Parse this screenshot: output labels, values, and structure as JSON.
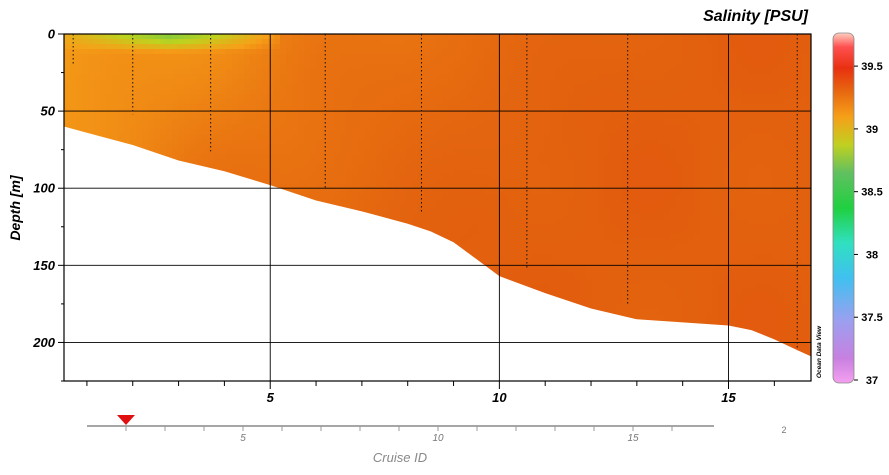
{
  "chart_data": {
    "type": "heatmap",
    "title": "Salinity [PSU]",
    "ylabel": "Depth [m]",
    "xlabel": "",
    "xlim": [
      0.5,
      16.8
    ],
    "ylim": [
      225,
      0
    ],
    "y_inverted": true,
    "x_ticks": [
      5,
      10,
      15
    ],
    "y_ticks": [
      0,
      50,
      100,
      150,
      200
    ],
    "grid": true,
    "stations_x": [
      0.7,
      2.0,
      3.7,
      6.2,
      8.3,
      10.6,
      12.8,
      16.5
    ],
    "station_max_depth": [
      20,
      52,
      76,
      100,
      116,
      152,
      176,
      205
    ],
    "bottom_profile": {
      "x": [
        0.5,
        1,
        2,
        3,
        4,
        5,
        6,
        7,
        8,
        8.5,
        9,
        9.5,
        10,
        11,
        12,
        13,
        14,
        15,
        15.5,
        16,
        16.5,
        16.8
      ],
      "depth": [
        60,
        64,
        72,
        82,
        89,
        98,
        108,
        115,
        123,
        128,
        135,
        146,
        157,
        168,
        178,
        185,
        187,
        189,
        192,
        198,
        205,
        209
      ]
    },
    "salinity_field": {
      "description_free": true,
      "surface_fresh_x": [
        0.5,
        5.2
      ],
      "surface_fresh_min": 38.3,
      "bulk_min": 38.85,
      "bulk_max": 39.12
    },
    "colorbar": {
      "min": 37,
      "max": 39.7,
      "tick_values": [
        37,
        37.5,
        38,
        38.5,
        39,
        39.5
      ],
      "tick_labels": [
        "37",
        "37.5",
        "38",
        "38.5",
        "39",
        "39.5"
      ]
    },
    "watermark": "Ocean Data View",
    "secondary_axis": {
      "label": "Cruise ID",
      "ticks": [
        5,
        10,
        15
      ],
      "tick_labels": [
        "5",
        "10",
        "15"
      ],
      "extra_label": "2",
      "marker_value": 2
    }
  }
}
